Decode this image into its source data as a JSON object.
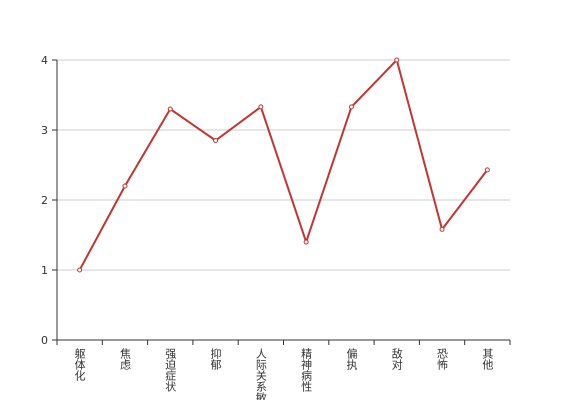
{
  "chart_data": {
    "type": "line",
    "categories": [
      "躯体化",
      "焦虑",
      "强迫症状",
      "抑郁",
      "人际关系敏感",
      "精神病性",
      "偏执",
      "敌对",
      "恐怖",
      "其他"
    ],
    "values": [
      1.0,
      2.2,
      3.3,
      2.85,
      3.33,
      1.4,
      3.33,
      4.0,
      1.58,
      2.43
    ],
    "color": "#c23531",
    "ylim": [
      0,
      4
    ],
    "yticks": [
      0,
      1,
      2,
      3,
      4
    ],
    "grid": true
  }
}
